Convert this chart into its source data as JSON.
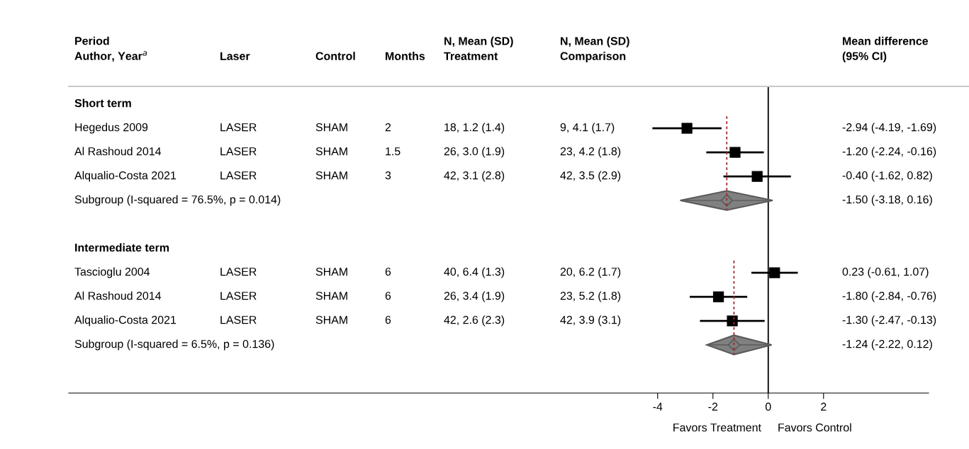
{
  "chart_data": {
    "type": "scatter",
    "orientation": "horizontal",
    "categories": [
      "Short term",
      "Hegedus 2009",
      "Al Rashoud 2014",
      "Alqualio-Costa 2021",
      "Subgroup (I-squared = 76.5%, p = 0.014)",
      null,
      "Intermediate term",
      "Tascioglu 2004",
      "Al Rashoud 2014",
      "Alqualio-Costa 2021",
      "Subgroup (I-squared = 6.5%, p = 0.136)"
    ],
    "series": [
      {
        "color": "#000000",
        "marker": "square",
        "values": [
          null,
          -2.94,
          -1.2,
          -0.4,
          null,
          null,
          null,
          0.23,
          -1.8,
          -1.3,
          null
        ],
        "errors": [
          null,
          [
            -4.19,
            -1.69
          ],
          [
            -2.24,
            -0.16
          ],
          [
            -1.62,
            0.82
          ],
          null,
          null,
          null,
          [
            -0.61,
            1.07
          ],
          [
            -2.84,
            -0.76
          ],
          [
            -2.47,
            -0.13
          ],
          null
        ]
      },
      {
        "color": "#808080",
        "marker": "diamond",
        "values": [
          null,
          null,
          null,
          null,
          -1.5,
          null,
          null,
          null,
          null,
          null,
          -1.24
        ],
        "errors": [
          null,
          null,
          null,
          null,
          [
            -3.18,
            0.16
          ],
          null,
          null,
          null,
          null,
          null,
          [
            -2.22,
            0.12
          ]
        ]
      }
    ],
    "xlim": [
      -25.3,
      5.8
    ],
    "xticks": [
      -4,
      -2,
      0,
      2
    ],
    "ref_lines": [
      {
        "axis": "x",
        "value": 0,
        "color": "#000000",
        "line_style": "solid"
      },
      {
        "axis": "x",
        "value": -1.5,
        "color": "#a0282c",
        "line_style": "dotted"
      },
      {
        "axis": "x",
        "value": -1.24,
        "color": "#a0282c",
        "line_style": "dotted"
      }
    ],
    "grid": false,
    "legend": false,
    "annotations": [
      "Period\nAuthor, Year$^{a}$",
      "Laser",
      "Control",
      "Months",
      "N, Mean (SD)\nTreatment",
      "N, Mean (SD)\nComparison",
      "Mean difference\n(95% CI)",
      "LASER",
      "SHAM",
      "2",
      "18, 1.2 (1.4)",
      "9, 4.1 (1.7)",
      "-2.94 (-4.19, -1.69)",
      "LASER",
      "SHAM",
      "1.5",
      "26, 3.0 (1.9)",
      "23, 4.2 (1.8)",
      "-1.20 (-2.24, -0.16)",
      "LASER",
      "SHAM",
      "3",
      "42, 3.1 (2.8)",
      "42, 3.5 (2.9)",
      "-0.40 (-1.62, 0.82)",
      "-1.50 (-3.18, 0.16)",
      "LASER",
      "SHAM",
      "6",
      "40, 6.4 (1.3)",
      "20, 6.2 (1.7)",
      "0.23 (-0.61, 1.07)",
      "LASER",
      "SHAM",
      "6",
      "26, 3.4 (1.9)",
      "23, 5.2 (1.8)",
      "-1.80 (-2.84, -0.76)",
      "LASER",
      "SHAM",
      "6",
      "42, 2.6 (2.3)",
      "42, 3.9 (3.1)",
      "-1.30 (-2.47, -0.13)",
      "-1.24 (-2.22, 0.12)",
      "Favors Treatment",
      "Favors Control"
    ]
  }
}
